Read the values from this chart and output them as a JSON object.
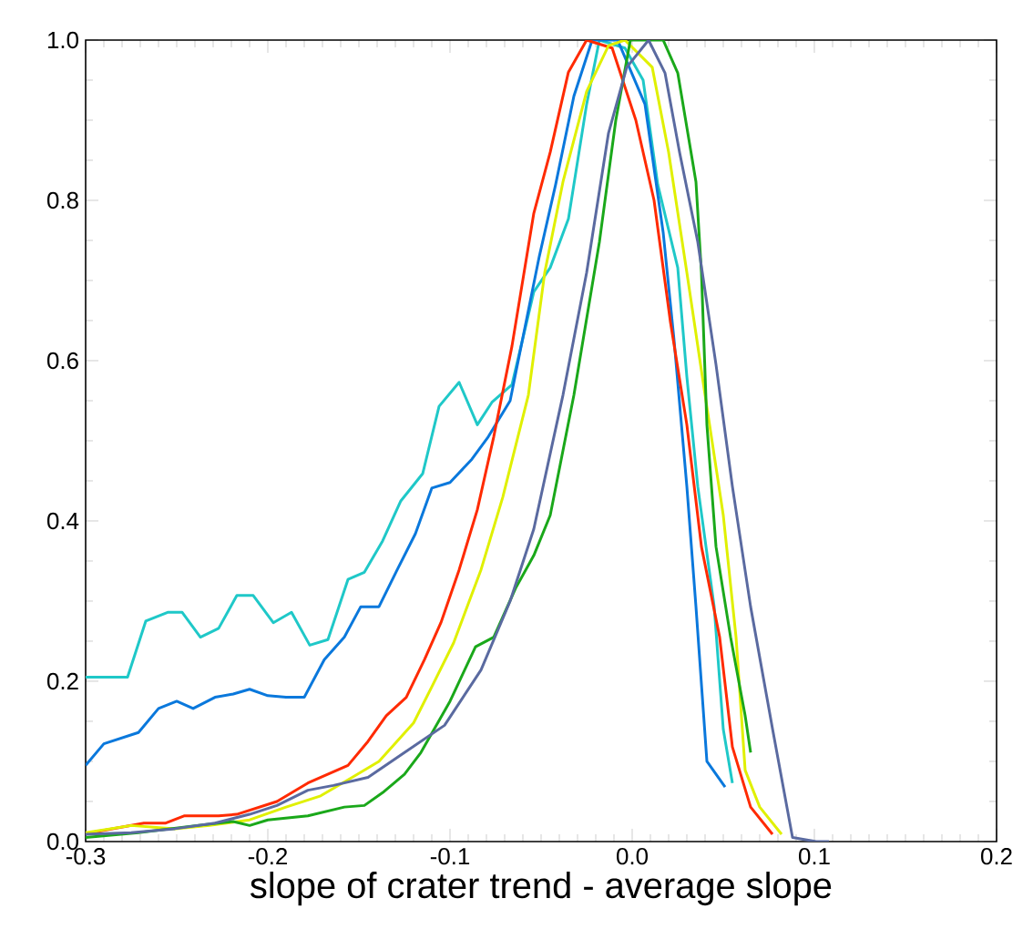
{
  "chart_data": {
    "type": "line",
    "xlabel": "slope of crater trend - average slope",
    "xlim": [
      -0.3,
      0.2
    ],
    "ylim": [
      0,
      1
    ],
    "xticks": [
      -0.3,
      -0.2,
      -0.1,
      {
        "value": 0,
        "label": "0.0"
      },
      0.1,
      0.2
    ],
    "yticks": [
      {
        "value": 0,
        "label": "0.0"
      },
      0.2,
      0.4,
      0.6,
      0.8,
      {
        "value": 1,
        "label": "1.0"
      }
    ],
    "grid": false,
    "legend": false,
    "marker": "none",
    "line_style": "solid",
    "series": [
      {
        "color": "#1fc8c8",
        "x": [
          -0.3,
          -0.277,
          -0.267,
          -0.255,
          -0.247,
          -0.237,
          -0.227,
          -0.217,
          -0.208,
          -0.197,
          -0.187,
          -0.177,
          -0.167,
          -0.156,
          -0.147,
          -0.137,
          -0.127,
          -0.115,
          -0.106,
          -0.095,
          -0.085,
          -0.077,
          -0.066,
          -0.054,
          -0.045,
          -0.035,
          -0.025,
          -0.018,
          -0.004,
          0.006,
          0.014,
          0.025,
          0.03,
          0.036,
          0.045,
          0.05,
          0.055
        ],
        "values": [
          0.205,
          0.205,
          0.275,
          0.286,
          0.286,
          0.255,
          0.266,
          0.307,
          0.307,
          0.273,
          0.286,
          0.245,
          0.252,
          0.327,
          0.336,
          0.375,
          0.425,
          0.459,
          0.543,
          0.573,
          0.52,
          0.548,
          0.57,
          0.686,
          0.716,
          0.777,
          0.92,
          1.0,
          0.99,
          0.95,
          0.82,
          0.716,
          0.58,
          0.443,
          0.293,
          0.14,
          0.073
        ]
      },
      {
        "color": "#0a78dc",
        "x": [
          -0.3,
          -0.29,
          -0.271,
          -0.26,
          -0.25,
          -0.241,
          -0.229,
          -0.219,
          -0.21,
          -0.2,
          -0.19,
          -0.18,
          -0.169,
          -0.158,
          -0.149,
          -0.139,
          -0.129,
          -0.119,
          -0.11,
          -0.1,
          -0.088,
          -0.079,
          -0.067,
          -0.059,
          -0.051,
          -0.042,
          -0.032,
          -0.022,
          -0.008,
          0.007,
          0.017,
          0.023,
          0.03,
          0.035,
          0.041,
          0.051
        ],
        "values": [
          0.095,
          0.122,
          0.136,
          0.166,
          0.175,
          0.166,
          0.18,
          0.184,
          0.19,
          0.182,
          0.18,
          0.18,
          0.227,
          0.255,
          0.293,
          0.293,
          0.339,
          0.384,
          0.441,
          0.448,
          0.477,
          0.505,
          0.55,
          0.64,
          0.73,
          0.82,
          0.93,
          1.0,
          1.0,
          0.92,
          0.76,
          0.625,
          0.443,
          0.293,
          0.1,
          0.068
        ]
      },
      {
        "color": "#ff2a00",
        "x": [
          -0.3,
          -0.268,
          -0.256,
          -0.246,
          -0.227,
          -0.217,
          -0.195,
          -0.178,
          -0.156,
          -0.145,
          -0.135,
          -0.124,
          -0.114,
          -0.105,
          -0.095,
          -0.085,
          -0.076,
          -0.066,
          -0.054,
          -0.045,
          -0.035,
          -0.025,
          -0.011,
          0.002,
          0.012,
          0.021,
          0.03,
          0.038,
          0.048,
          0.055,
          0.065,
          0.077
        ],
        "values": [
          0.01,
          0.023,
          0.023,
          0.032,
          0.032,
          0.034,
          0.05,
          0.073,
          0.095,
          0.125,
          0.157,
          0.18,
          0.227,
          0.273,
          0.339,
          0.414,
          0.505,
          0.618,
          0.784,
          0.86,
          0.96,
          1.0,
          0.99,
          0.9,
          0.8,
          0.648,
          0.52,
          0.368,
          0.255,
          0.118,
          0.043,
          0.009
        ]
      },
      {
        "color": "#e0f000",
        "x": [
          -0.3,
          -0.275,
          -0.251,
          -0.232,
          -0.21,
          -0.19,
          -0.171,
          -0.156,
          -0.139,
          -0.12,
          -0.11,
          -0.098,
          -0.083,
          -0.071,
          -0.057,
          -0.048,
          -0.038,
          -0.025,
          -0.013,
          -0.004,
          0.011,
          0.02,
          0.03,
          0.04,
          0.05,
          0.057,
          0.062,
          0.07,
          0.082
        ],
        "values": [
          0.011,
          0.02,
          0.016,
          0.02,
          0.027,
          0.043,
          0.057,
          0.077,
          0.1,
          0.148,
          0.193,
          0.248,
          0.339,
          0.43,
          0.557,
          0.71,
          0.823,
          0.936,
          0.993,
          1.0,
          0.966,
          0.86,
          0.71,
          0.557,
          0.407,
          0.255,
          0.089,
          0.043,
          0.009
        ]
      },
      {
        "color": "#1aa81a",
        "x": [
          -0.3,
          -0.271,
          -0.239,
          -0.219,
          -0.21,
          -0.2,
          -0.178,
          -0.158,
          -0.147,
          -0.137,
          -0.125,
          -0.116,
          -0.1,
          -0.086,
          -0.076,
          -0.064,
          -0.054,
          -0.045,
          -0.032,
          -0.018,
          -0.009,
          -0.001,
          0.017,
          0.025,
          0.035,
          0.038,
          0.041,
          0.046,
          0.054,
          0.062,
          0.065
        ],
        "values": [
          0.005,
          0.011,
          0.02,
          0.025,
          0.02,
          0.027,
          0.032,
          0.043,
          0.045,
          0.061,
          0.084,
          0.111,
          0.175,
          0.243,
          0.255,
          0.316,
          0.357,
          0.407,
          0.557,
          0.748,
          0.9,
          1.0,
          1.0,
          0.959,
          0.823,
          0.71,
          0.52,
          0.368,
          0.255,
          0.157,
          0.111
        ]
      },
      {
        "color": "#5a6aa0",
        "x": [
          -0.3,
          -0.275,
          -0.251,
          -0.229,
          -0.21,
          -0.195,
          -0.178,
          -0.164,
          -0.145,
          -0.125,
          -0.103,
          -0.083,
          -0.067,
          -0.054,
          -0.038,
          -0.025,
          -0.013,
          -0.003,
          0.009,
          0.018,
          0.026,
          0.036,
          0.046,
          0.055,
          0.065,
          0.077,
          0.088,
          0.101,
          0.108
        ],
        "values": [
          0.009,
          0.011,
          0.016,
          0.023,
          0.034,
          0.045,
          0.064,
          0.07,
          0.08,
          0.111,
          0.145,
          0.214,
          0.3,
          0.39,
          0.557,
          0.71,
          0.884,
          0.966,
          1.0,
          0.959,
          0.86,
          0.748,
          0.595,
          0.443,
          0.293,
          0.141,
          0.005,
          0,
          0
        ]
      }
    ]
  }
}
